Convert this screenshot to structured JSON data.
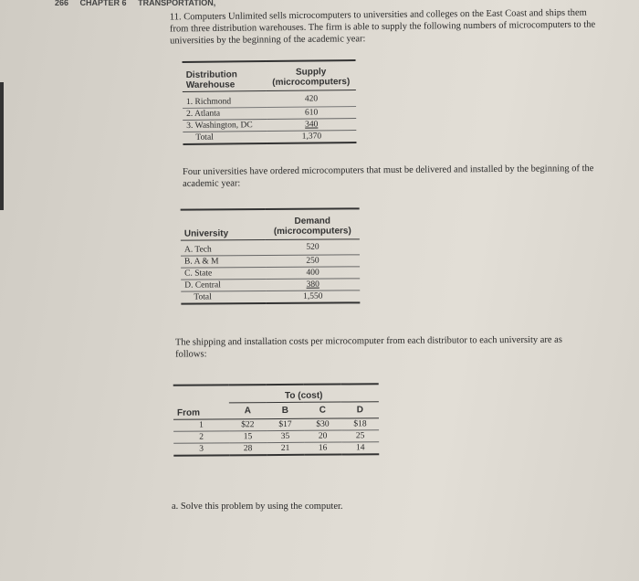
{
  "header": {
    "page_number": "266",
    "chapter": "CHAPTER 6",
    "chapter_title": "TRANSPORTATION,"
  },
  "problem": {
    "number": "11.",
    "intro": "Computers Unlimited sells microcomputers to universities and colleges on the East Coast and ships them from three distribution warehouses. The firm is able to supply the following numbers of microcomputers to the universities by the beginning of the academic year:",
    "demand_intro": "Four universities have ordered microcomputers that must be delivered and installed by the beginning of the academic year:",
    "cost_intro": "The shipping and installation costs per microcomputer from each distributor to each university are as follows:",
    "part_a": "a. Solve this problem by using the computer."
  },
  "supply_table": {
    "headers": [
      "Distribution Warehouse",
      "Supply (microcomputers)"
    ],
    "rows": [
      [
        "1. Richmond",
        "420"
      ],
      [
        "2. Atlanta",
        "610"
      ],
      [
        "3. Washington, DC",
        "340"
      ]
    ],
    "total": [
      "Total",
      "1,370"
    ]
  },
  "demand_table": {
    "headers": [
      "University",
      "Demand (microcomputers)"
    ],
    "rows": [
      [
        "A. Tech",
        "520"
      ],
      [
        "B. A & M",
        "250"
      ],
      [
        "C. State",
        "400"
      ],
      [
        "D. Central",
        "380"
      ]
    ],
    "total": [
      "Total",
      "1,550"
    ]
  },
  "cost_table": {
    "group_header": "To (cost)",
    "row_header": "From",
    "columns": [
      "A",
      "B",
      "C",
      "D"
    ],
    "rows": [
      [
        "1",
        "$22",
        "$17",
        "$30",
        "$18"
      ],
      [
        "2",
        "15",
        "35",
        "20",
        "25"
      ],
      [
        "3",
        "28",
        "21",
        "16",
        "14"
      ]
    ]
  }
}
